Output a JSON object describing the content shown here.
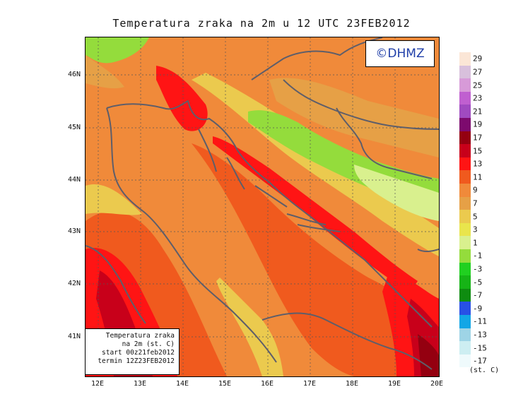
{
  "title": "Temperatura zraka na 2m u 12 UTC 23FEB2012",
  "watermark": "©DHMZ",
  "info_box": {
    "line1": "Temperatura zraka",
    "line2": "na 2m (st. C)",
    "line3": "start 00z21feb2012",
    "line4": "termin 12Z23FEB2012"
  },
  "lat_ticks": [
    "46N",
    "45N",
    "44N",
    "43N",
    "42N",
    "41N"
  ],
  "lon_ticks": [
    "12E",
    "13E",
    "14E",
    "15E",
    "16E",
    "17E",
    "18E",
    "19E",
    "20E"
  ],
  "legend": {
    "labels": [
      "29",
      "27",
      "25",
      "23",
      "21",
      "19",
      "17",
      "15",
      "13",
      "11",
      "9",
      "7",
      "5",
      "3",
      "1",
      "-1",
      "-3",
      "-5",
      "-7",
      "-9",
      "-11",
      "-13",
      "-15",
      "-17"
    ],
    "colors": [
      "#fbe6d6",
      "#d8c0dc",
      "#d79ad8",
      "#c05fd0",
      "#a04ac0",
      "#7d0a6e",
      "#940010",
      "#c8001a",
      "#ff1414",
      "#f05a1e",
      "#f08a3a",
      "#e6a046",
      "#ebca4e",
      "#e9e54c",
      "#d9f08e",
      "#94dc3c",
      "#20d020",
      "#16b416",
      "#0e8c10",
      "#2850e6",
      "#12a6e6",
      "#9ed4e6",
      "#cdeef2",
      "#effafc"
    ],
    "unit": "(st. C)"
  }
}
